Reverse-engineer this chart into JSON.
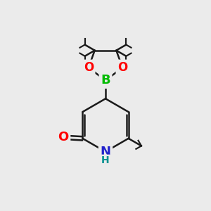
{
  "bg_color": "#ebebeb",
  "bond_color": "#1a1a1a",
  "bond_width": 1.8,
  "atom_colors": {
    "O": "#ff0000",
    "N": "#2222cc",
    "B": "#00bb00",
    "H_label": "#009090",
    "C": "#1a1a1a"
  },
  "figsize": [
    3.0,
    3.0
  ],
  "dpi": 100,
  "xlim": [
    0,
    10
  ],
  "ylim": [
    0,
    10
  ]
}
